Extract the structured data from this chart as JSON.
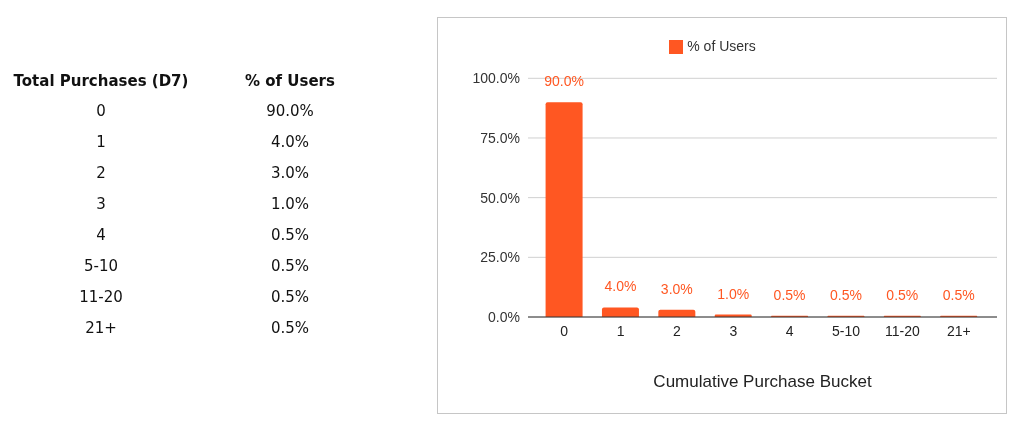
{
  "chart_data": {
    "type": "bar",
    "xlabel": "Cumulative Purchase Bucket",
    "categories": [
      "0",
      "1",
      "2",
      "3",
      "4",
      "5-10",
      "11-20",
      "21+"
    ],
    "series": [
      {
        "name": "% of Users",
        "color": "#ff5722",
        "values": [
          90,
          4,
          3,
          1,
          0.5,
          0.5,
          0.5,
          0.5
        ],
        "value_labels": [
          "90.0%",
          "4.0%",
          "3.0%",
          "1.0%",
          "0.5%",
          "0.5%",
          "0.5%",
          "0.5%"
        ]
      }
    ],
    "ylim": [
      0,
      100
    ],
    "yticks": [
      {
        "value": 0,
        "label": "0.0%"
      },
      {
        "value": 25,
        "label": "25.0%"
      },
      {
        "value": 50,
        "label": "50.0%"
      },
      {
        "value": 75,
        "label": "75.0%"
      },
      {
        "value": 100,
        "label": "100.0%"
      }
    ],
    "grid": "y",
    "legend": "top",
    "annotations": [
      "Total Purchases (D7)",
      "% of Users"
    ]
  }
}
